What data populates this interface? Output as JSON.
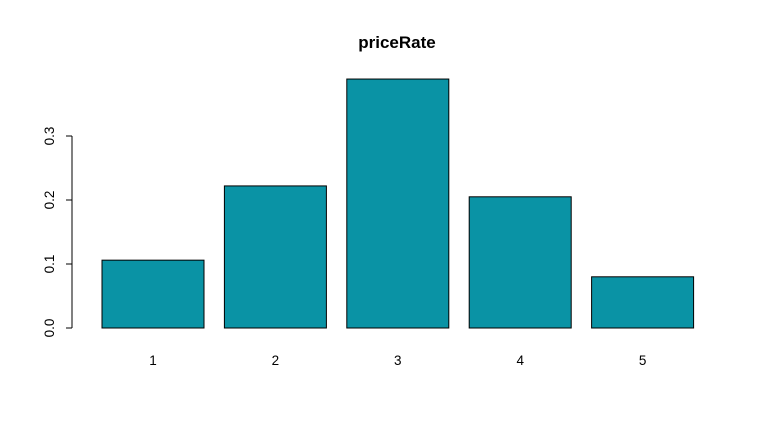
{
  "chart_data": {
    "type": "bar",
    "title": "priceRate",
    "xlabel": "",
    "ylabel": "",
    "categories": [
      "1",
      "2",
      "3",
      "4",
      "5"
    ],
    "values": [
      0.106,
      0.222,
      0.389,
      0.205,
      0.08
    ],
    "ylim": [
      0,
      0.39
    ],
    "yticks": [
      0.0,
      0.1,
      0.2,
      0.3
    ],
    "ytick_labels": [
      "0.0",
      "0.1",
      "0.2",
      "0.3"
    ],
    "bar_color": "#0a93a5",
    "grid": false,
    "legend": false
  }
}
